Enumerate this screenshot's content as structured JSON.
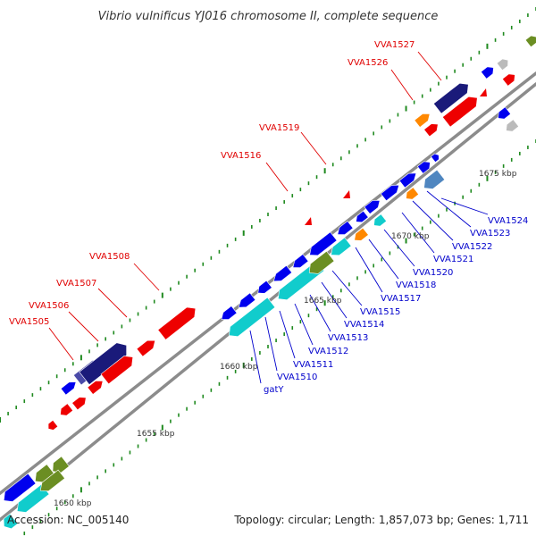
{
  "title": "Vibrio vulnificus YJ016 chromosome II, complete sequence",
  "footer": {
    "accession": "Accession: NC_005140",
    "summary": "Topology: circular; Length: 1,857,073 bp; Genes: 1,711"
  },
  "colors": {
    "backbone": "#8c8c8c",
    "tick": "#1f8a1f",
    "top_strand_label": "#e00000",
    "bottom_strand_label": "#0000cc",
    "gene_blue": "#0000ee",
    "gene_red": "#ee0000",
    "gene_cyan": "#11cccc",
    "gene_navy": "#1a1a7a",
    "gene_slate": "#4a4aa8",
    "gene_orange": "#ff8800",
    "gene_olive": "#6b8e23",
    "gene_steel": "#4f86c0",
    "gene_grey": "#bbbbbb"
  },
  "kbp_labels": [
    "1650 kbp",
    "1655 kbp",
    "1660 kbp",
    "1665 kbp",
    "1670 kbp",
    "1675 kbp"
  ],
  "top_gene_labels": [
    "VVA1505",
    "VVA1506",
    "VVA1507",
    "VVA1508",
    "VVA1516",
    "VVA1519",
    "VVA1526",
    "VVA1527"
  ],
  "bottom_gene_labels": [
    "gatY",
    "VVA1510",
    "VVA1511",
    "VVA1512",
    "VVA1513",
    "VVA1514",
    "VVA1515",
    "VVA1517",
    "VVA1518",
    "VVA1520",
    "VVA1521",
    "VVA1522",
    "VVA1523",
    "VVA1524"
  ]
}
